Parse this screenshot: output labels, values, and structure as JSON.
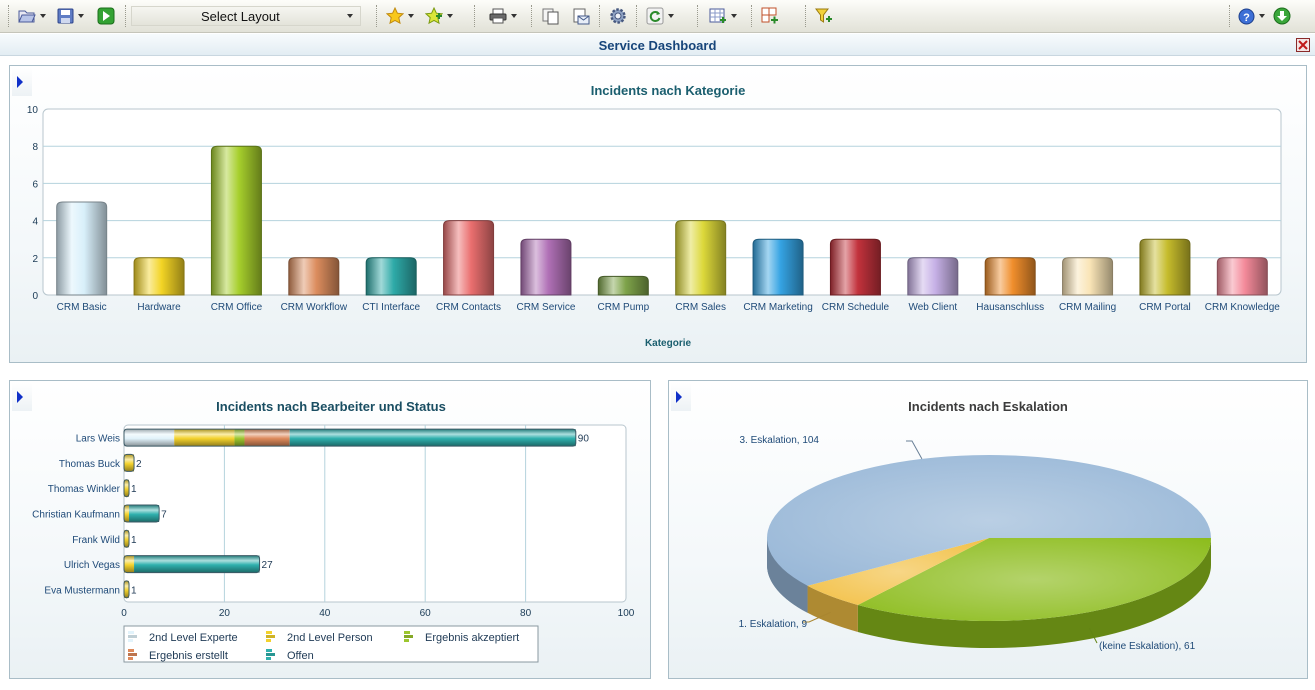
{
  "toolbar": {
    "layout_select": "Select Layout",
    "icons": [
      "folder-open-icon",
      "save-icon",
      "run-icon",
      "favorite-star-icon",
      "add-favorite-icon",
      "print-icon",
      "copy-icon",
      "email-icon",
      "settings-gear-icon",
      "refresh-icon",
      "add-grid-icon",
      "add-panel-icon",
      "filter-icon",
      "help-icon",
      "download-icon"
    ]
  },
  "window": {
    "title": "Service Dashboard",
    "close_icon": "close-icon"
  },
  "panels": {
    "category": {
      "title": "Incidents nach Kategorie",
      "chart_data": {
        "type": "bar",
        "title": "Incidents nach Kategorie",
        "xlabel": "Kategorie",
        "ylabel": "",
        "ylim": [
          0,
          10
        ],
        "yticks": [
          "0",
          "2",
          "4",
          "6",
          "8",
          "10"
        ],
        "categories": [
          "CRM Basic",
          "Hardware",
          "CRM Office",
          "CRM Workflow",
          "CTI Interface",
          "CRM Contacts",
          "CRM Service",
          "CRM Pump",
          "CRM Sales",
          "CRM Marketing",
          "CRM Schedule",
          "Web Client",
          "Hausanschluss",
          "CRM Mailing",
          "CRM Portal",
          "CRM Knowledge"
        ],
        "values": [
          5,
          2,
          8,
          2,
          2,
          4,
          3,
          1,
          4,
          3,
          3,
          2,
          2,
          2,
          3,
          2
        ],
        "colors": [
          "#d8effa",
          "#f3d425",
          "#a6cf2c",
          "#dc8d5e",
          "#2eaaa8",
          "#ea6f6f",
          "#b070b6",
          "#7ea34a",
          "#dcd83a",
          "#35a3e3",
          "#c2323c",
          "#c6b0e6",
          "#f08e2c",
          "#f9e4b6",
          "#c6bc2c",
          "#f48a9a"
        ],
        "grid": true
      }
    },
    "assignee": {
      "title": "Incidents nach Bearbeiter und Status",
      "chart_data": {
        "type": "bar",
        "orientation": "horizontal",
        "stacked": true,
        "title": "Incidents nach Bearbeiter und Status",
        "xlim": [
          0,
          100
        ],
        "xticks": [
          "0",
          "20",
          "40",
          "60",
          "80",
          "100"
        ],
        "categories": [
          "Lars Weis",
          "Thomas Buck",
          "Thomas Winkler",
          "Christian Kaufmann",
          "Frank Wild",
          "Ulrich Vegas",
          "Eva Mustermann"
        ],
        "totals": [
          90,
          2,
          1,
          7,
          1,
          27,
          1
        ],
        "series": [
          {
            "name": "2nd Level Experte",
            "color": "#e2f3fb",
            "values": [
              10,
              0,
              0,
              0,
              0,
              0,
              0
            ]
          },
          {
            "name": "2nd Level Person",
            "color": "#f3d22d",
            "values": [
              12,
              2,
              1,
              1,
              1,
              2,
              1
            ]
          },
          {
            "name": "Ergebnis akzeptiert",
            "color": "#9cc62e",
            "values": [
              2,
              0,
              0,
              0,
              0,
              0,
              0
            ]
          },
          {
            "name": "Ergebnis erstellt",
            "color": "#de8a5c",
            "values": [
              9,
              0,
              0,
              0,
              0,
              0,
              0
            ]
          },
          {
            "name": "Offen",
            "color": "#2fb0ad",
            "values": [
              57,
              0,
              0,
              6,
              0,
              25,
              0
            ]
          }
        ],
        "legend_position": "bottom",
        "grid": true
      }
    },
    "escalation": {
      "title": "Incidents nach Eskalation",
      "chart_data": {
        "type": "pie",
        "style": "3d",
        "title": "Incidents nach Eskalation",
        "categories": [
          "3. Eskalation",
          "1. Eskalation",
          "(keine Eskalation)"
        ],
        "values": [
          104,
          9,
          61
        ],
        "labels": [
          "3. Eskalation, 104",
          "1. Eskalation, 9",
          "(keine Eskalation), 61"
        ],
        "colors": [
          "#95b5d6",
          "#f2c045",
          "#8cbc1c"
        ]
      }
    }
  }
}
